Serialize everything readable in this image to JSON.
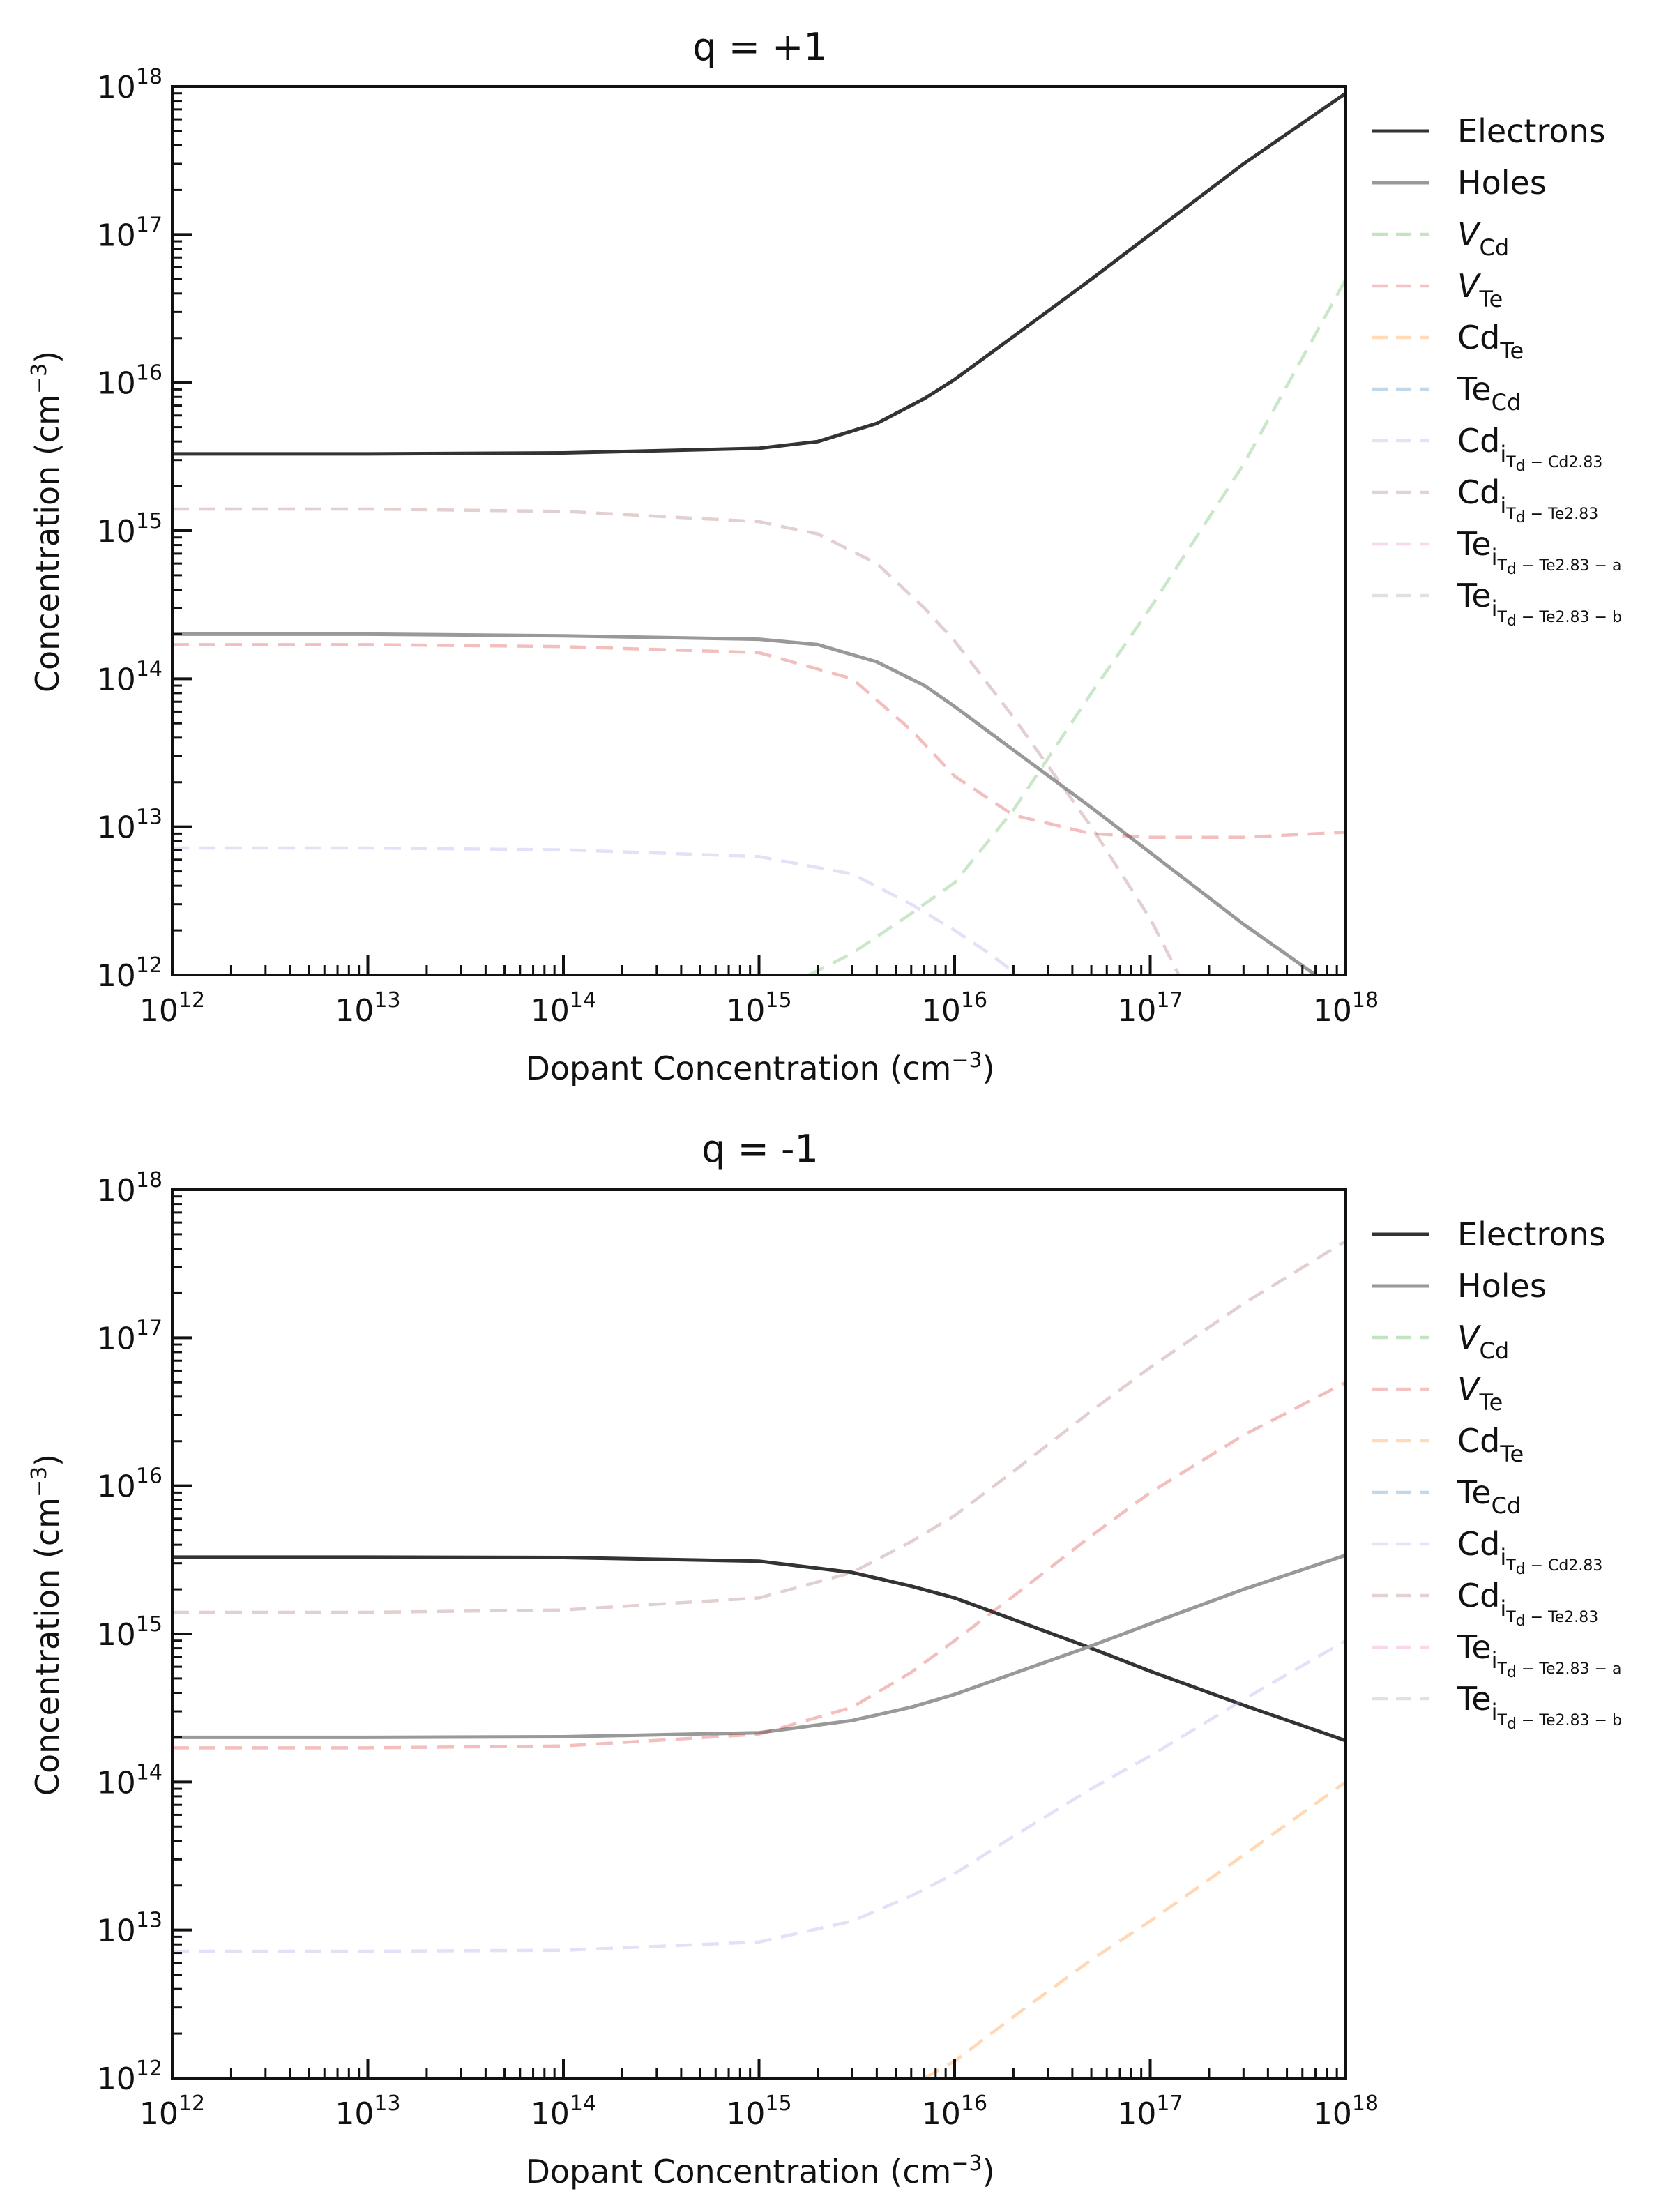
{
  "colors": {
    "electrons": "#333333",
    "holes": "#999999",
    "V_Cd": "#2ca02c",
    "V_Te": "#d62728",
    "Cd_Te": "#ff7f0e",
    "Te_Cd": "#1f77b4",
    "Cd_i_Cd": "#9b9be8",
    "Cd_i_Te": "#a06060",
    "Te_i_a": "#e377c2",
    "Te_i_b": "#8c9aa6"
  },
  "legend_labels": {
    "electrons": "Electrons",
    "holes": "Holes",
    "V_Cd": {
      "main": "V",
      "sub": "Cd"
    },
    "V_Te": {
      "main": "V",
      "sub": "Te"
    },
    "Cd_Te": {
      "main": "Cd",
      "sub": "Te"
    },
    "Te_Cd": {
      "main": "Te",
      "sub": "Cd"
    },
    "Cd_i_Cd": {
      "main": "Cd",
      "sub": "i",
      "subsub": "T",
      "subsub2": "d",
      "tail": " − Cd2.83"
    },
    "Cd_i_Te": {
      "main": "Cd",
      "sub": "i",
      "subsub": "T",
      "subsub2": "d",
      "tail": " − Te2.83"
    },
    "Te_i_a": {
      "main": "Te",
      "sub": "i",
      "subsub": "T",
      "subsub2": "d",
      "tail": " − Te2.83 − a"
    },
    "Te_i_b": {
      "main": "Te",
      "sub": "i",
      "subsub": "T",
      "subsub2": "d",
      "tail": " − Te2.83 − b"
    }
  },
  "chart_data": [
    {
      "type": "line",
      "title": "q = +1",
      "xlabel": "Dopant Concentration (cm",
      "xlabel_sup": "−3",
      "ylabel": "Concentration (cm",
      "ylabel_sup": "−3",
      "xscale": "log",
      "yscale": "log",
      "xlim": [
        1000000000000.0,
        1e+18
      ],
      "ylim": [
        1000000000000.0,
        1e+18
      ],
      "tick_labels": [
        "10",
        "12",
        "13",
        "14",
        "15",
        "16",
        "17",
        "18"
      ],
      "legend_position": "outside-right",
      "series": [
        {
          "key": "electrons",
          "style": "solid",
          "alpha": 1.0,
          "x": [
            1000000000000.0,
            10000000000000.0,
            100000000000000.0,
            1000000000000000.0,
            2000000000000000.0,
            4000000000000000.0,
            7000000000000000.0,
            1e+16,
            2e+16,
            5e+16,
            1e+17,
            3e+17,
            1e+18
          ],
          "y": [
            3300000000000000.0,
            3300000000000000.0,
            3350000000000000.0,
            3600000000000000.0,
            4000000000000000.0,
            5300000000000000.0,
            7800000000000000.0,
            1.05e+16,
            2.05e+16,
            5e+16,
            1e+17,
            3e+17,
            9e+17
          ]
        },
        {
          "key": "holes",
          "style": "solid",
          "alpha": 1.0,
          "x": [
            1000000000000.0,
            10000000000000.0,
            100000000000000.0,
            1000000000000000.0,
            2000000000000000.0,
            4000000000000000.0,
            7000000000000000.0,
            1e+16,
            2e+16,
            5e+16,
            1e+17,
            3e+17,
            7e+17
          ],
          "y": [
            200000000000000.0,
            200000000000000.0,
            195000000000000.0,
            185000000000000.0,
            170000000000000.0,
            130000000000000.0,
            90000000000000.0,
            65000000000000.0,
            33000000000000.0,
            13500000000000.0,
            6700000000000.0,
            2200000000000.0,
            1000000000000.0
          ]
        },
        {
          "key": "V_Cd",
          "style": "dashed",
          "alpha": 0.25,
          "x": [
            1800000000000000.0,
            3000000000000000.0,
            6000000000000000.0,
            1e+16,
            2e+16,
            5e+16,
            1e+17,
            3e+17,
            1e+18
          ],
          "y": [
            1000000000000.0,
            1400000000000.0,
            2600000000000.0,
            4200000000000.0,
            13000000000000.0,
            80000000000000.0,
            300000000000000.0,
            2800000000000000.0,
            5e+16
          ]
        },
        {
          "key": "V_Te",
          "style": "dashed",
          "alpha": 0.3,
          "x": [
            1000000000000.0,
            10000000000000.0,
            100000000000000.0,
            1000000000000000.0,
            3000000000000000.0,
            6000000000000000.0,
            1e+16,
            2e+16,
            5e+16,
            1e+17,
            3e+17,
            1e+18
          ],
          "y": [
            170000000000000.0,
            170000000000000.0,
            165000000000000.0,
            150000000000000.0,
            100000000000000.0,
            45000000000000.0,
            22000000000000.0,
            12000000000000.0,
            9000000000000.0,
            8500000000000.0,
            8500000000000.0,
            9200000000000.0
          ]
        },
        {
          "key": "Cd_i_Cd",
          "style": "dashed",
          "alpha": 0.3,
          "x": [
            1000000000000.0,
            10000000000000.0,
            100000000000000.0,
            1000000000000000.0,
            3000000000000000.0,
            6000000000000000.0,
            1e+16,
            1.5e+16,
            2.1e+16
          ],
          "y": [
            7200000000000.0,
            7200000000000.0,
            7000000000000.0,
            6300000000000.0,
            4800000000000.0,
            3000000000000.0,
            2000000000000.0,
            1400000000000.0,
            1000000000000.0
          ]
        },
        {
          "key": "Cd_i_Te",
          "style": "dashed",
          "alpha": 0.3,
          "x": [
            1000000000000.0,
            10000000000000.0,
            100000000000000.0,
            1000000000000000.0,
            2000000000000000.0,
            4000000000000000.0,
            7000000000000000.0,
            1e+16,
            2e+16,
            5e+16,
            1e+17,
            1.4e+17
          ],
          "y": [
            1400000000000000.0,
            1400000000000000.0,
            1350000000000000.0,
            1150000000000000.0,
            950000000000000.0,
            600000000000000.0,
            300000000000000.0,
            180000000000000.0,
            55000000000000.0,
            10000000000000.0,
            2400000000000.0,
            1000000000000.0
          ]
        }
      ]
    },
    {
      "type": "line",
      "title": "q = -1",
      "xlabel": "Dopant Concentration (cm",
      "xlabel_sup": "−3",
      "ylabel": "Concentration (cm",
      "ylabel_sup": "−3",
      "xscale": "log",
      "yscale": "log",
      "xlim": [
        1000000000000.0,
        1e+18
      ],
      "ylim": [
        1000000000000.0,
        1e+18
      ],
      "tick_labels": [
        "10",
        "12",
        "13",
        "14",
        "15",
        "16",
        "17",
        "18"
      ],
      "legend_position": "outside-right",
      "series": [
        {
          "key": "electrons",
          "style": "solid",
          "alpha": 1.0,
          "x": [
            1000000000000.0,
            10000000000000.0,
            100000000000000.0,
            1000000000000000.0,
            3000000000000000.0,
            6000000000000000.0,
            1e+16,
            2e+16,
            5e+16,
            1e+17,
            3e+17,
            1e+18
          ],
          "y": [
            3300000000000000.0,
            3300000000000000.0,
            3280000000000000.0,
            3100000000000000.0,
            2600000000000000.0,
            2100000000000000.0,
            1750000000000000.0,
            1250000000000000.0,
            800000000000000.0,
            560000000000000.0,
            330000000000000.0,
            190000000000000.0
          ]
        },
        {
          "key": "holes",
          "style": "solid",
          "alpha": 1.0,
          "x": [
            1000000000000.0,
            10000000000000.0,
            100000000000000.0,
            1000000000000000.0,
            3000000000000000.0,
            6000000000000000.0,
            1e+16,
            2e+16,
            5e+16,
            1e+17,
            3e+17,
            1e+18
          ],
          "y": [
            200000000000000.0,
            200000000000000.0,
            202000000000000.0,
            215000000000000.0,
            260000000000000.0,
            320000000000000.0,
            390000000000000.0,
            540000000000000.0,
            830000000000000.0,
            1170000000000000.0,
            2000000000000000.0,
            3400000000000000.0
          ]
        },
        {
          "key": "V_Te",
          "style": "dashed",
          "alpha": 0.3,
          "x": [
            1000000000000.0,
            10000000000000.0,
            100000000000000.0,
            1000000000000000.0,
            3000000000000000.0,
            6000000000000000.0,
            1e+16,
            2e+16,
            5e+16,
            1e+17,
            3e+17,
            1e+18
          ],
          "y": [
            170000000000000.0,
            170000000000000.0,
            175000000000000.0,
            210000000000000.0,
            320000000000000.0,
            550000000000000.0,
            900000000000000.0,
            1800000000000000.0,
            4600000000000000.0,
            9000000000000000.0,
            2.2e+16,
            5e+16
          ]
        },
        {
          "key": "Cd_i_Cd",
          "style": "dashed",
          "alpha": 0.3,
          "x": [
            1000000000000.0,
            10000000000000.0,
            100000000000000.0,
            1000000000000000.0,
            3000000000000000.0,
            6000000000000000.0,
            1e+16,
            2e+16,
            5e+16,
            1e+17,
            3e+17,
            1e+18
          ],
          "y": [
            7200000000000.0,
            7200000000000.0,
            7300000000000.0,
            8300000000000.0,
            11500000000000.0,
            17000000000000.0,
            24000000000000.0,
            43000000000000.0,
            90000000000000.0,
            150000000000000.0,
            360000000000000.0,
            900000000000000.0
          ]
        },
        {
          "key": "Cd_i_Te",
          "style": "dashed",
          "alpha": 0.3,
          "x": [
            1000000000000.0,
            10000000000000.0,
            100000000000000.0,
            1000000000000000.0,
            3000000000000000.0,
            6000000000000000.0,
            1e+16,
            2e+16,
            5e+16,
            1e+17,
            3e+17,
            1e+18
          ],
          "y": [
            1400000000000000.0,
            1400000000000000.0,
            1450000000000000.0,
            1750000000000000.0,
            2600000000000000.0,
            4200000000000000.0,
            6300000000000000.0,
            1.25e+16,
            3.2e+16,
            6.3e+16,
            1.7e+17,
            4.5e+17
          ]
        },
        {
          "key": "Cd_Te",
          "style": "dashed",
          "alpha": 0.3,
          "x": [
            7000000000000000.0,
            1e+16,
            2e+16,
            5e+16,
            1e+17,
            3e+17,
            1e+18
          ],
          "y": [
            1000000000000.0,
            1300000000000.0,
            2600000000000.0,
            6300000000000.0,
            11500000000000.0,
            32000000000000.0,
            100000000000000.0
          ]
        }
      ]
    }
  ]
}
